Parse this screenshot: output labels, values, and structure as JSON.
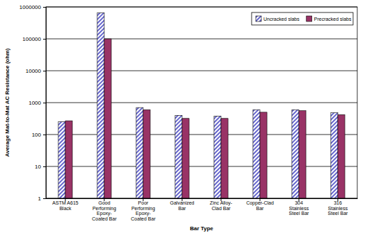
{
  "chart_data": {
    "type": "bar",
    "x_label": "Bar Type",
    "y_label": "Average Mat-to-Mat AC Resistance (ohm)",
    "categories": [
      "ASTM A615 Black",
      "Good Performing Epoxy-Coated Bar",
      "Poor Performing Epoxy-Coated Bar",
      "Galvanized Bar",
      "Zinc Alloy-Clad Bar",
      "Copper-Clad Bar",
      "304 Stainless Steel Bar",
      "316 Stainless Steel Bar"
    ],
    "series": [
      {
        "name": "Uncracked slabs",
        "color": "#6666cc",
        "values": [
          250,
          650000,
          700,
          400,
          380,
          600,
          600,
          480
        ]
      },
      {
        "name": "Precracked slabs",
        "color": "#993366",
        "values": [
          270,
          100000,
          600,
          320,
          320,
          500,
          560,
          420
        ]
      }
    ],
    "log": "y",
    "ylim": [
      1,
      1000000
    ],
    "yticks": [
      1,
      10,
      100,
      1000,
      10000,
      100000,
      1000000
    ],
    "grid": true,
    "legend": "top-right"
  }
}
